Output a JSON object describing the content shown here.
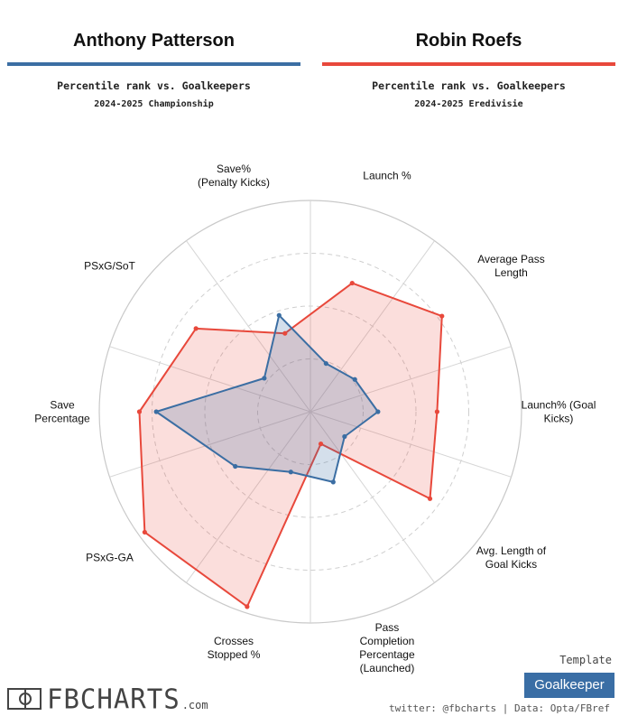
{
  "header": {
    "player1": "Anthony Patterson",
    "player2": "Robin Roefs",
    "subtitle1": "Percentile rank vs. Goalkeepers",
    "subtitle2": "Percentile rank vs. Goalkeepers",
    "season1": "2024-2025 Championship",
    "season2": "2024-2025 Eredivisie",
    "color1": "#3b6ea3",
    "color2": "#e8483b"
  },
  "chart_data": {
    "type": "radar",
    "axes": [
      [
        "Launch %"
      ],
      [
        "Average Pass",
        "Length"
      ],
      [
        "Launch% (Goal",
        "Kicks)"
      ],
      [
        "Avg. Length of",
        "Goal Kicks"
      ],
      [
        "Pass",
        "Completion",
        "Percentage",
        "(Launched)"
      ],
      [
        "Crosses",
        "Stopped %"
      ],
      [
        "PSxG-GA"
      ],
      [
        "Save",
        "Percentage"
      ],
      [
        "PSxG/SoT"
      ],
      [
        "Save%",
        "(Penalty Kicks)"
      ]
    ],
    "range": [
      0,
      100
    ],
    "rings": [
      0,
      25,
      50,
      75,
      100
    ],
    "series": [
      {
        "name": "Anthony Patterson",
        "color": "#3b6ea3",
        "values": [
          24,
          26,
          32,
          20,
          35,
          30,
          44,
          73,
          27,
          48
        ]
      },
      {
        "name": "Robin Roefs",
        "color": "#e8483b",
        "values": [
          64,
          77,
          60,
          70,
          16,
          97,
          97,
          81,
          67,
          39
        ]
      }
    ]
  },
  "footer": {
    "template_label": "Template",
    "template_value": "Goalkeeper",
    "credit": "twitter: @fbcharts | Data: Opta/FBref",
    "logo": "FBCHARTS",
    "logo_suffix": ".com"
  }
}
